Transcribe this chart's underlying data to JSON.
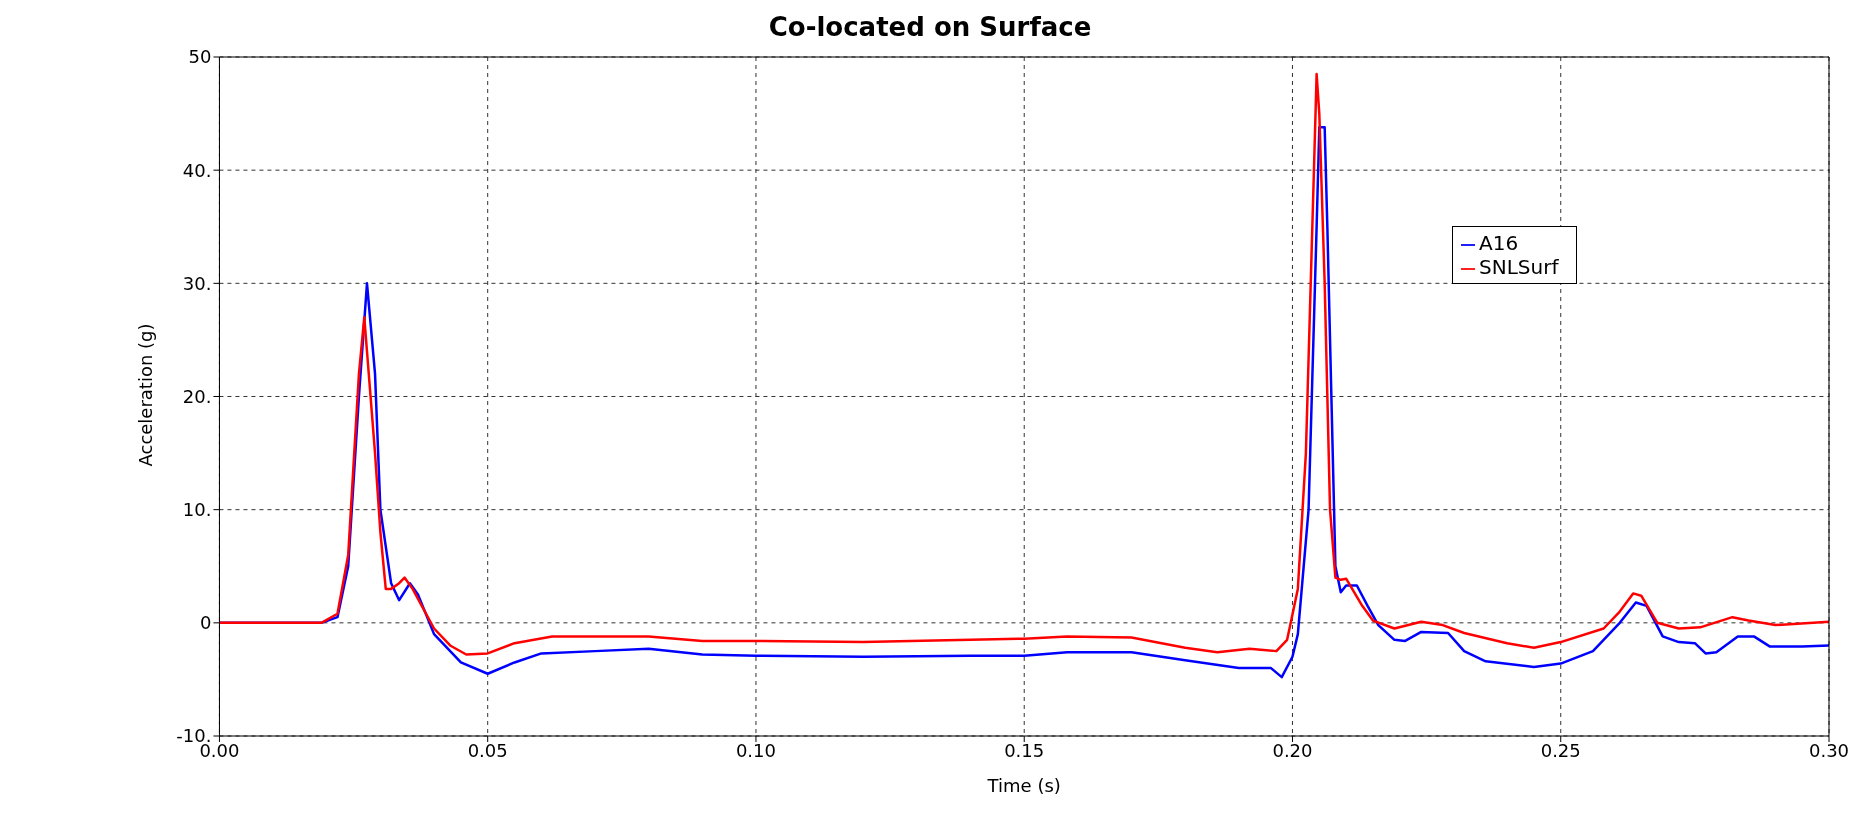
{
  "chart_data": {
    "type": "line",
    "title": "Co-located on Surface",
    "xlabel": "Time (s)",
    "ylabel": "Acceleration (g)",
    "xlim": [
      0,
      0.3
    ],
    "xticks": [
      {
        "value": 0,
        "label": "0.00"
      },
      {
        "value": 0.05,
        "label": "0.05"
      },
      {
        "value": 0.1,
        "label": "0.10"
      },
      {
        "value": 0.15,
        "label": "0.15"
      },
      {
        "value": 0.2,
        "label": "0.20"
      },
      {
        "value": 0.25,
        "label": "0.25"
      },
      {
        "value": 0.3,
        "label": "0.30"
      }
    ],
    "ylim": [
      -10,
      50
    ],
    "yticks": [
      {
        "value": -10,
        "label": "-10."
      },
      0,
      {
        "value": 10,
        "label": "10."
      },
      {
        "value": 20,
        "label": "20."
      },
      {
        "value": 30,
        "label": "30."
      },
      {
        "value": 40,
        "label": "40."
      },
      50
    ],
    "grid": true,
    "legend": "top right",
    "line_style": "solid",
    "marker": "none",
    "series": [
      {
        "name": "A16",
        "color": "#0000ff",
        "x": [
          0,
          0.019,
          0.022,
          0.024,
          0.026,
          0.0275,
          0.029,
          0.03,
          0.032,
          0.0335,
          0.0355,
          0.037,
          0.04,
          0.045,
          0.05,
          0.055,
          0.06,
          0.07,
          0.08,
          0.09,
          0.1,
          0.12,
          0.14,
          0.15,
          0.158,
          0.17,
          0.18,
          0.19,
          0.196,
          0.198,
          0.2,
          0.201,
          0.203,
          0.2045,
          0.205,
          0.206,
          0.2065,
          0.2075,
          0.208,
          0.209,
          0.21,
          0.212,
          0.214,
          0.216,
          0.219,
          0.221,
          0.224,
          0.229,
          0.232,
          0.236,
          0.245,
          0.25,
          0.256,
          0.261,
          0.264,
          0.266,
          0.269,
          0.272,
          0.275,
          0.277,
          0.279,
          0.283,
          0.286,
          0.289,
          0.295,
          0.3
        ],
        "values": [
          0,
          0,
          0.5,
          5,
          20,
          30,
          22,
          10,
          3.5,
          2,
          3.5,
          2.5,
          -1,
          -3.5,
          -4.5,
          -3.5,
          -2.7,
          -2.5,
          -2.3,
          -2.8,
          -2.9,
          -3,
          -2.9,
          -2.9,
          -2.6,
          -2.6,
          -3.3,
          -4,
          -4,
          -4.8,
          -3,
          -1,
          10,
          35,
          43.8,
          43.8,
          35,
          15,
          5,
          2.7,
          3.3,
          3.3,
          1.5,
          -0.2,
          -1.5,
          -1.6,
          -0.8,
          -0.9,
          -2.5,
          -3.4,
          -3.9,
          -3.6,
          -2.5,
          0,
          1.8,
          1.5,
          -1.2,
          -1.7,
          -1.8,
          -2.7,
          -2.6,
          -1.2,
          -1.2,
          -2.1,
          -2.1,
          -2
        ]
      },
      {
        "name": "SNLSurf",
        "color": "#ff0000",
        "x": [
          0,
          0.019,
          0.022,
          0.024,
          0.026,
          0.027,
          0.0275,
          0.029,
          0.03,
          0.031,
          0.032,
          0.0335,
          0.0345,
          0.036,
          0.04,
          0.043,
          0.046,
          0.05,
          0.055,
          0.062,
          0.08,
          0.09,
          0.1,
          0.12,
          0.14,
          0.15,
          0.158,
          0.17,
          0.18,
          0.186,
          0.192,
          0.197,
          0.199,
          0.201,
          0.2025,
          0.204,
          0.2045,
          0.205,
          0.206,
          0.207,
          0.208,
          0.209,
          0.21,
          0.213,
          0.215,
          0.219,
          0.224,
          0.228,
          0.232,
          0.24,
          0.245,
          0.25,
          0.258,
          0.261,
          0.2635,
          0.265,
          0.268,
          0.272,
          0.276,
          0.282,
          0.285,
          0.29,
          0.3
        ],
        "values": [
          0,
          0,
          0.8,
          6,
          22,
          27,
          24,
          15,
          8,
          3,
          3,
          3.5,
          4,
          3,
          -0.5,
          -2,
          -2.8,
          -2.7,
          -1.8,
          -1.2,
          -1.2,
          -1.6,
          -1.6,
          -1.7,
          -1.5,
          -1.4,
          -1.2,
          -1.3,
          -2.2,
          -2.6,
          -2.3,
          -2.5,
          -1.5,
          3,
          15,
          40,
          48.5,
          45,
          30,
          10,
          4,
          3.8,
          3.9,
          1.5,
          0.2,
          -0.5,
          0.1,
          -0.2,
          -0.9,
          -1.8,
          -2.2,
          -1.7,
          -0.5,
          1,
          2.6,
          2.4,
          0,
          -0.5,
          -0.4,
          0.5,
          0.2,
          -0.2,
          0.1
        ]
      }
    ]
  }
}
